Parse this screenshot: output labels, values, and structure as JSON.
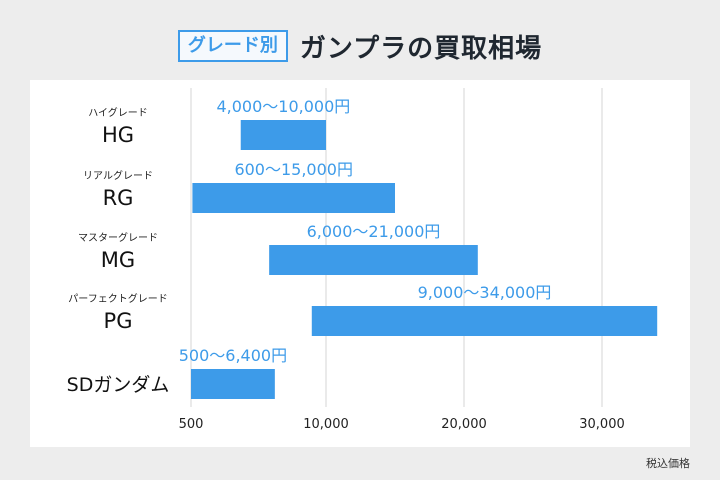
{
  "header": {
    "tag": "グレード別",
    "title": "ガンプラの買取相場"
  },
  "footnote": "税込価格",
  "colors": {
    "accent": "#3d9be9",
    "bar": "#3d9be9",
    "grid": "#d6d6d6"
  },
  "chart_data": {
    "type": "bar",
    "orientation": "horizontal-range",
    "categories": [
      {
        "small": "ハイグレード",
        "big": "HG",
        "min": 4000,
        "max": 10000,
        "label": "4,000～10,000円"
      },
      {
        "small": "リアルグレード",
        "big": "RG",
        "min": 600,
        "max": 15000,
        "label": "600～15,000円"
      },
      {
        "small": "マスターグレード",
        "big": "MG",
        "min": 6000,
        "max": 21000,
        "label": "6,000～21,000円"
      },
      {
        "small": "パーフェクトグレード",
        "big": "PG",
        "min": 9000,
        "max": 34000,
        "label": "9,000～34,000円"
      },
      {
        "small": "",
        "big": "SDガンダム",
        "min": 500,
        "max": 6400,
        "label": "500～6,400円"
      }
    ],
    "x_ticks": [
      {
        "value": 500,
        "label": "500"
      },
      {
        "value": 10000,
        "label": "10,000"
      },
      {
        "value": 20000,
        "label": "20,000"
      },
      {
        "value": 30000,
        "label": "30,000"
      }
    ],
    "xlim": [
      500,
      34000
    ],
    "grid": true
  }
}
